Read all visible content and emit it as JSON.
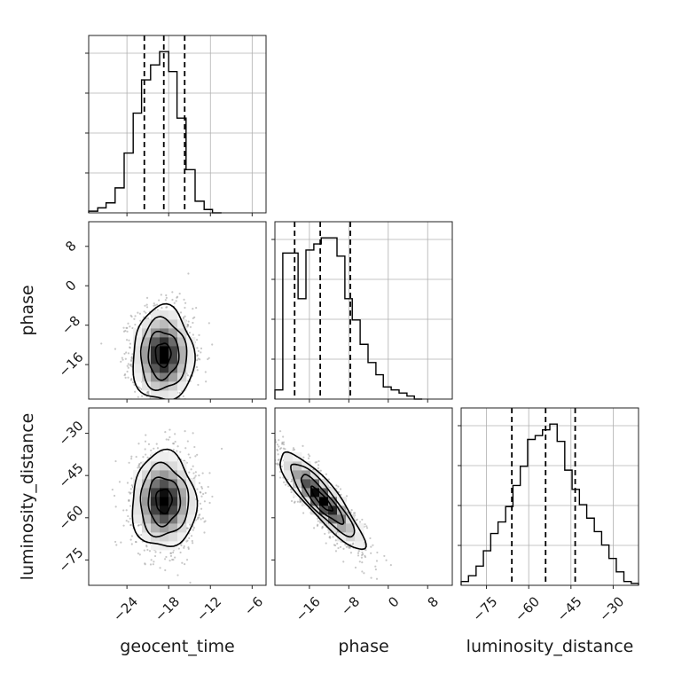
{
  "chart_data": {
    "type": "corner",
    "parameters": [
      "geocent_time",
      "phase",
      "luminosity_distance"
    ],
    "xlabels": [
      "geocent_time",
      "phase",
      "luminosity_distance"
    ],
    "ylabels": [
      "",
      "phase",
      "luminosity_distance"
    ],
    "ranges": {
      "geocent_time": [
        -29.5,
        -4
      ],
      "phase": [
        -23,
        13
      ],
      "luminosity_distance": [
        -84,
        -21
      ]
    },
    "ticks": {
      "geocent_time": [
        -24,
        -18,
        -12,
        -6
      ],
      "phase": [
        -16,
        -8,
        0,
        8
      ],
      "luminosity_distance": [
        -75,
        -60,
        -45,
        -30
      ]
    },
    "tick_labels": {
      "geocent_time": [
        "−24",
        "−18",
        "−12",
        "−6"
      ],
      "phase": [
        "−16",
        "−8",
        "0",
        "8"
      ],
      "luminosity_distance": [
        "−75",
        "−60",
        "−45",
        "−30"
      ]
    },
    "quantiles": {
      "geocent_time": [
        -21.5,
        -18.7,
        -15.7
      ],
      "phase": [
        -19.0,
        -13.8,
        -7.7
      ],
      "luminosity_distance": [
        -66.0,
        -54.0,
        -43.5
      ]
    },
    "histograms": {
      "geocent_time": {
        "edges": [
          -29.5,
          -28.2,
          -27.0,
          -25.7,
          -24.4,
          -23.1,
          -21.9,
          -20.6,
          -19.3,
          -18.0,
          -16.8,
          -15.5,
          -14.2,
          -12.9,
          -11.7,
          -10.4
        ],
        "counts": [
          1,
          3,
          6,
          15,
          36,
          60,
          80,
          89,
          97,
          85,
          57,
          26,
          7,
          2,
          0
        ]
      },
      "phase": {
        "edges": [
          -23.0,
          -21.4,
          -19.9,
          -18.3,
          -16.7,
          -15.1,
          -13.6,
          -12.0,
          -10.4,
          -8.8,
          -7.3,
          -5.7,
          -4.1,
          -2.5,
          -1.0,
          0.6,
          2.2,
          3.8,
          5.3,
          6.9
        ],
        "counts": [
          3,
          48,
          48,
          33,
          49,
          51,
          53,
          53,
          47,
          33,
          26,
          18,
          12,
          8,
          4,
          3,
          2,
          1,
          0
        ]
      },
      "luminosity_distance": {
        "edges": [
          -84,
          -81.4,
          -78.7,
          -76.1,
          -73.5,
          -70.9,
          -68.2,
          -65.6,
          -63.0,
          -60.4,
          -57.7,
          -55.1,
          -52.5,
          -49.9,
          -47.2,
          -44.6,
          -42.0,
          -39.4,
          -36.7,
          -34.1,
          -31.5,
          -28.9,
          -26.2,
          -23.6,
          -21.0
        ],
        "counts": [
          2,
          5,
          10,
          18,
          27,
          33,
          41,
          52,
          62,
          76,
          78,
          81,
          84,
          75,
          60,
          50,
          42,
          35,
          28,
          21,
          14,
          7,
          2,
          1
        ]
      }
    },
    "joint_2d": [
      {
        "x": "geocent_time",
        "y": "phase",
        "center": [
          -18.8,
          -14.0
        ],
        "sigma": [
          2.2,
          4.8
        ],
        "rho": 0.0
      },
      {
        "x": "geocent_time",
        "y": "luminosity_distance",
        "center": [
          -18.7,
          -54.0
        ],
        "sigma": [
          2.3,
          8.5
        ],
        "rho": 0.0
      },
      {
        "x": "phase",
        "y": "luminosity_distance",
        "center": [
          -13.5,
          -53.5
        ],
        "sigma": [
          4.3,
          8.6
        ],
        "rho": -0.88
      }
    ],
    "contour_levels": [
      "0.5",
      "1.0",
      "1.5",
      "2.0"
    ],
    "grid": true,
    "colors": {
      "line": "#000000",
      "grid": "#b0b0b0",
      "frame": "#222222",
      "scatter": "#9a9a9a"
    }
  }
}
